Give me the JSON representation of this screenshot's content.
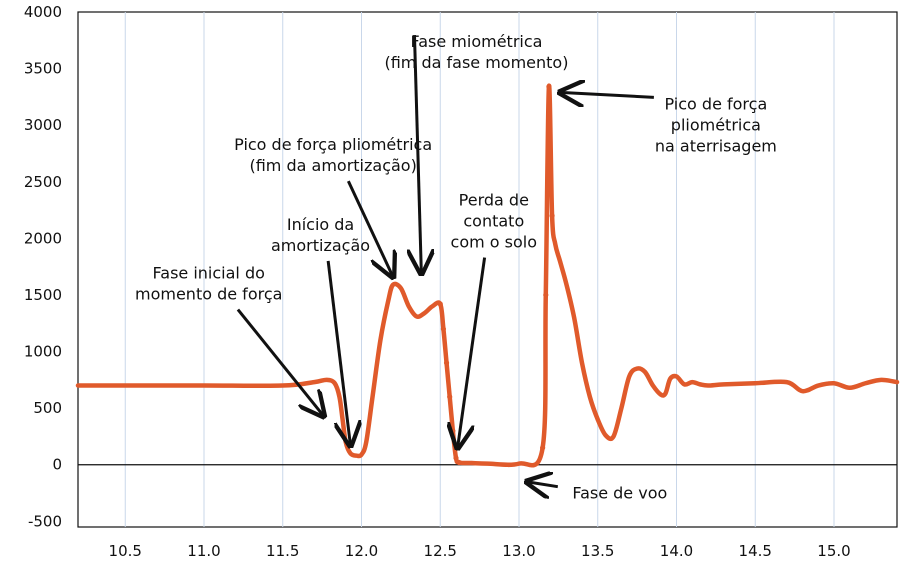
{
  "chart_data": {
    "type": "line",
    "title": "",
    "xlabel": "",
    "ylabel": "",
    "xlim": [
      10.2,
      15.4
    ],
    "ylim": [
      -550,
      4000
    ],
    "x_ticks": [
      10.5,
      11.0,
      11.5,
      12.0,
      12.5,
      13.0,
      13.5,
      14.0,
      14.5,
      15.0
    ],
    "x_tick_labels": [
      "10.5",
      "11.0",
      "11.5",
      "12.0",
      "12.5",
      "13.0",
      "13.5",
      "14.0",
      "14.5",
      "15.0"
    ],
    "y_ticks": [
      -500,
      0,
      500,
      1000,
      1500,
      2000,
      2500,
      3000,
      3500,
      4000
    ],
    "y_tick_labels": [
      "-500",
      "0",
      "500",
      "1000",
      "1500",
      "2000",
      "2500",
      "3000",
      "3500",
      "4000"
    ],
    "grid": "vertical",
    "zero_line": true,
    "series_color": "#e05a2b",
    "series": [
      {
        "x": [
          10.2,
          10.5,
          11.0,
          11.5,
          11.7,
          11.78,
          11.83,
          11.86,
          11.88,
          11.9,
          11.93,
          11.97,
          12.0,
          12.03,
          12.07,
          12.12,
          12.17,
          12.2,
          12.25,
          12.3,
          12.35,
          12.4,
          12.45,
          12.5,
          12.52,
          12.54,
          12.56,
          12.58,
          12.6,
          12.62,
          12.7,
          12.8,
          13.0,
          13.15,
          13.17,
          13.19,
          13.21,
          13.23,
          13.26,
          13.3,
          13.35,
          13.4,
          13.45,
          13.5,
          13.55,
          13.6,
          13.65,
          13.7,
          13.75,
          13.8,
          13.85,
          13.9,
          13.93,
          13.96,
          14.0,
          14.05,
          14.1,
          14.15,
          14.2,
          14.3,
          14.5,
          14.7,
          14.8,
          14.9,
          15.0,
          15.1,
          15.2,
          15.3,
          15.4
        ],
        "y": [
          700,
          700,
          700,
          700,
          730,
          750,
          720,
          600,
          400,
          200,
          100,
          80,
          90,
          200,
          600,
          1100,
          1450,
          1590,
          1560,
          1400,
          1310,
          1340,
          1400,
          1420,
          1200,
          900,
          600,
          300,
          60,
          20,
          15,
          10,
          10,
          150,
          1500,
          3340,
          2200,
          1950,
          1800,
          1600,
          1300,
          900,
          600,
          400,
          260,
          250,
          500,
          780,
          850,
          820,
          700,
          620,
          630,
          760,
          780,
          710,
          730,
          710,
          700,
          710,
          720,
          730,
          650,
          700,
          720,
          680,
          720,
          750,
          730
        ]
      }
    ],
    "annotations": [
      {
        "lines": [
          "Fase inicial do",
          "momento de força"
        ],
        "x": 11.76,
        "y": 430,
        "tx": 11.03,
        "ty": 1645
      },
      {
        "lines": [
          "Início da",
          "amortização"
        ],
        "x": 11.93,
        "y": 170,
        "tx": 11.74,
        "ty": 2075
      },
      {
        "lines": [
          "Pico de força pliométrica",
          "(fim da amortização)"
        ],
        "x": 12.2,
        "y": 1660,
        "tx": 11.82,
        "ty": 2780
      },
      {
        "lines": [
          "Fase miométrica",
          "(fim da fase momento)"
        ],
        "x": 12.38,
        "y": 1690,
        "tx": 12.73,
        "ty": 3690
      },
      {
        "lines": [
          "Perda de",
          "contato",
          "com o solo"
        ],
        "x": 12.61,
        "y": 150,
        "tx": 12.84,
        "ty": 2290
      },
      {
        "lines": [
          "Pico de força",
          "pliométrica",
          "na aterrisagem"
        ],
        "x": 13.26,
        "y": 3290,
        "tx": 14.25,
        "ty": 3140
      },
      {
        "lines": [
          "Fase de voo"
        ],
        "x": 13.05,
        "y": -150,
        "tx": 13.64,
        "ty": -300
      }
    ]
  }
}
